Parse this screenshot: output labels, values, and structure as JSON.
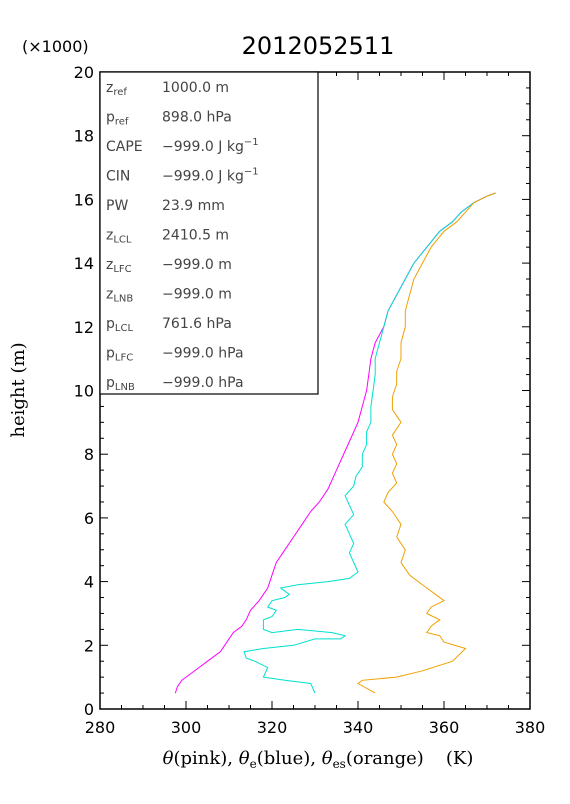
{
  "chart_data": {
    "type": "line",
    "title": "2012052511",
    "multiplier_label": "(×1000)",
    "xlabel": "θ(pink), θe(blue), θes(orange)   (K)",
    "xlabel_parts": {
      "theta": "θ",
      "pink": "(pink), ",
      "theta_e": "θ",
      "e_sub": "e",
      "blue": "(blue), ",
      "theta_es": "θ",
      "es_sub": "es",
      "orange": "(orange)",
      "unit": "(K)"
    },
    "ylabel": "height (m)",
    "xlim": [
      280,
      380
    ],
    "ylim": [
      0,
      20
    ],
    "x_ticks": [
      "280",
      "300",
      "320",
      "340",
      "360",
      "380"
    ],
    "y_ticks": [
      "0",
      "2",
      "4",
      "6",
      "8",
      "10",
      "12",
      "14",
      "16",
      "18",
      "20"
    ],
    "series": [
      {
        "name": "θ",
        "color": "#ff00ff",
        "points": [
          [
            297.5,
            0.5
          ],
          [
            298,
            0.7
          ],
          [
            299,
            0.9
          ],
          [
            301,
            1.1
          ],
          [
            303,
            1.3
          ],
          [
            305,
            1.5
          ],
          [
            308,
            1.8
          ],
          [
            309,
            2.0
          ],
          [
            310,
            2.2
          ],
          [
            311,
            2.4
          ],
          [
            313,
            2.6
          ],
          [
            314,
            2.8
          ],
          [
            315,
            3.1
          ],
          [
            317,
            3.4
          ],
          [
            319,
            3.8
          ],
          [
            320,
            4.2
          ],
          [
            321,
            4.6
          ],
          [
            323,
            5.0
          ],
          [
            325,
            5.4
          ],
          [
            327,
            5.8
          ],
          [
            329,
            6.2
          ],
          [
            331,
            6.5
          ],
          [
            333,
            6.9
          ],
          [
            334,
            7.2
          ],
          [
            335,
            7.5
          ],
          [
            336,
            7.8
          ],
          [
            337,
            8.1
          ],
          [
            338,
            8.4
          ],
          [
            339,
            8.7
          ],
          [
            340,
            9.0
          ],
          [
            341,
            9.5
          ],
          [
            342,
            10.0
          ],
          [
            342.5,
            10.5
          ],
          [
            343,
            11.0
          ],
          [
            344,
            11.5
          ],
          [
            346,
            12.0
          ],
          [
            347,
            12.5
          ],
          [
            349,
            13.0
          ],
          [
            351,
            13.5
          ],
          [
            353,
            14.0
          ],
          [
            356,
            14.5
          ],
          [
            359,
            15.0
          ],
          [
            362,
            15.3
          ],
          [
            364,
            15.6
          ],
          [
            367,
            15.9
          ],
          [
            370,
            16.1
          ],
          [
            372,
            16.2
          ]
        ]
      },
      {
        "name": "θe",
        "color": "#00e0d0",
        "points": [
          [
            330,
            0.5
          ],
          [
            329,
            0.8
          ],
          [
            323,
            0.9
          ],
          [
            318,
            1.0
          ],
          [
            319,
            1.3
          ],
          [
            316,
            1.5
          ],
          [
            314,
            1.6
          ],
          [
            313.5,
            1.8
          ],
          [
            318,
            1.9
          ],
          [
            325,
            2.0
          ],
          [
            330,
            2.2
          ],
          [
            336,
            2.2
          ],
          [
            337,
            2.3
          ],
          [
            334,
            2.4
          ],
          [
            326,
            2.5
          ],
          [
            320,
            2.4
          ],
          [
            318,
            2.5
          ],
          [
            318,
            2.8
          ],
          [
            320,
            2.9
          ],
          [
            321,
            3.1
          ],
          [
            319,
            3.2
          ],
          [
            320,
            3.4
          ],
          [
            323,
            3.5
          ],
          [
            324,
            3.6
          ],
          [
            322,
            3.8
          ],
          [
            326,
            3.9
          ],
          [
            333,
            4.0
          ],
          [
            338,
            4.1
          ],
          [
            340,
            4.3
          ],
          [
            339,
            4.6
          ],
          [
            338,
            4.9
          ],
          [
            339,
            5.2
          ],
          [
            338,
            5.5
          ],
          [
            337,
            5.8
          ],
          [
            339,
            6.1
          ],
          [
            338,
            6.4
          ],
          [
            337,
            6.7
          ],
          [
            339,
            7.0
          ],
          [
            339.5,
            7.3
          ],
          [
            341,
            7.6
          ],
          [
            341,
            8.0
          ],
          [
            342,
            8.3
          ],
          [
            342,
            8.7
          ],
          [
            343,
            9.0
          ],
          [
            343,
            9.5
          ],
          [
            343.5,
            10.0
          ],
          [
            344,
            10.5
          ],
          [
            344,
            11.0
          ],
          [
            345,
            11.5
          ],
          [
            346,
            12.0
          ],
          [
            347,
            12.5
          ],
          [
            349,
            13.0
          ],
          [
            351,
            13.5
          ],
          [
            353,
            14.0
          ],
          [
            356,
            14.5
          ],
          [
            359,
            15.0
          ],
          [
            362,
            15.3
          ],
          [
            364,
            15.6
          ],
          [
            367,
            15.9
          ],
          [
            370,
            16.1
          ],
          [
            372,
            16.2
          ]
        ]
      },
      {
        "name": "θes",
        "color": "#f0a000",
        "points": [
          [
            344,
            0.5
          ],
          [
            340,
            0.8
          ],
          [
            341,
            0.9
          ],
          [
            349,
            1.0
          ],
          [
            355,
            1.2
          ],
          [
            362,
            1.5
          ],
          [
            365,
            1.9
          ],
          [
            360,
            2.1
          ],
          [
            359,
            2.3
          ],
          [
            356,
            2.4
          ],
          [
            357,
            2.6
          ],
          [
            359,
            2.8
          ],
          [
            356,
            3.0
          ],
          [
            357,
            3.2
          ],
          [
            360,
            3.4
          ],
          [
            358,
            3.6
          ],
          [
            356,
            3.8
          ],
          [
            352,
            4.2
          ],
          [
            350,
            4.6
          ],
          [
            351,
            5.0
          ],
          [
            349,
            5.4
          ],
          [
            350,
            5.8
          ],
          [
            348,
            6.2
          ],
          [
            346,
            6.5
          ],
          [
            347,
            6.8
          ],
          [
            349,
            7.1
          ],
          [
            348,
            7.4
          ],
          [
            349,
            7.7
          ],
          [
            348,
            8.0
          ],
          [
            349,
            8.3
          ],
          [
            348,
            8.6
          ],
          [
            350,
            9.0
          ],
          [
            348,
            9.4
          ],
          [
            348,
            9.8
          ],
          [
            349,
            10.2
          ],
          [
            349,
            10.6
          ],
          [
            350,
            11.0
          ],
          [
            350,
            11.5
          ],
          [
            351,
            12.0
          ],
          [
            351,
            12.5
          ],
          [
            352,
            13.0
          ],
          [
            353,
            13.5
          ],
          [
            355,
            14.0
          ],
          [
            357,
            14.5
          ],
          [
            360,
            15.0
          ],
          [
            363,
            15.3
          ],
          [
            365,
            15.6
          ],
          [
            367,
            15.9
          ],
          [
            370,
            16.1
          ],
          [
            372,
            16.2
          ]
        ]
      }
    ]
  },
  "info_box": {
    "rows": [
      {
        "main": "z",
        "sub": "ref",
        "value": "1000.0 m"
      },
      {
        "main": "p",
        "sub": "ref",
        "value": "898.0 hPa"
      },
      {
        "main": "CAPE",
        "sub": "",
        "value": "−999.0 J kg",
        "sup": "−1"
      },
      {
        "main": "CIN",
        "sub": "",
        "value": "−999.0 J kg",
        "sup": "−1"
      },
      {
        "main": "PW",
        "sub": "",
        "value": "23.9 mm"
      },
      {
        "main": "z",
        "sub": "LCL",
        "value": "2410.5 m"
      },
      {
        "main": "z",
        "sub": "LFC",
        "value": "−999.0 m"
      },
      {
        "main": "z",
        "sub": "LNB",
        "value": "−999.0 m"
      },
      {
        "main": "p",
        "sub": "LCL",
        "value": "761.6 hPa"
      },
      {
        "main": "p",
        "sub": "LFC",
        "value": "−999.0 hPa"
      },
      {
        "main": "p",
        "sub": "LNB",
        "value": "−999.0 hPa"
      }
    ]
  }
}
